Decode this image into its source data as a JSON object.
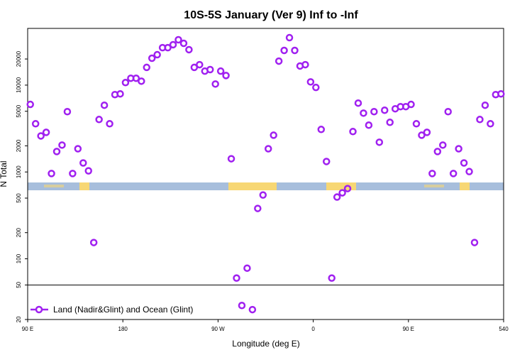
{
  "chart_data": {
    "type": "scatter",
    "title": "10S-5S January (Ver 9)   Inf to -Inf",
    "xlabel": "Longitude (deg E)",
    "ylabel": "N Total",
    "log_y": true,
    "legend": "bottom-left",
    "xlim": [
      90,
      540
    ],
    "xticks": [
      {
        "value": 90,
        "label": "90 E"
      },
      180,
      {
        "value": 270,
        "label": "90 W"
      },
      {
        "value": 360,
        "label": "0"
      },
      {
        "value": 450,
        "label": "90 E"
      },
      540
    ],
    "ylim": [
      20,
      45000
    ],
    "yticks": [
      20,
      50,
      100,
      200,
      500,
      1000,
      2000,
      5000,
      10000,
      20000
    ],
    "hlines": [
      50
    ],
    "series": [
      {
        "name": "Land (Nadir&Glint) and Ocean (Glint)",
        "color": "#a020f0",
        "x": [
          92.5,
          97.5,
          102.5,
          107.5,
          112.5,
          117.5,
          122.5,
          127.5,
          132.5,
          137.5,
          142.5,
          147.5,
          152.5,
          157.5,
          162.5,
          167.5,
          172.5,
          177.5,
          182.5,
          187.5,
          192.5,
          197.5,
          202.5,
          207.5,
          212.5,
          217.5,
          222.5,
          227.5,
          232.5,
          237.5,
          242.5,
          247.5,
          252.5,
          257.5,
          262.5,
          267.5,
          272.5,
          277.5,
          282.5,
          287.5,
          292.5,
          297.5,
          302.5,
          307.5,
          312.5,
          317.5,
          322.5,
          327.5,
          332.5,
          337.5,
          342.5,
          347.5,
          352.5,
          357.5,
          362.5,
          367.5,
          372.5,
          377.5,
          382.5,
          387.5,
          392.5,
          397.5,
          402.5,
          407.5,
          412.5,
          417.5,
          422.5,
          427.5,
          432.5,
          437.5,
          442.5,
          447.5,
          452.5,
          457.5,
          462.5,
          467.5,
          472.5,
          477.5,
          482.5,
          487.5,
          492.5,
          497.5,
          502.5,
          507.5,
          512.5,
          517.5,
          522.5,
          527.5,
          532.5,
          537.5
        ],
        "values": [
          6000,
          3590,
          2600,
          2860,
          960,
          1720,
          2040,
          4950,
          960,
          1850,
          1270,
          1030,
          154,
          4020,
          5870,
          3590,
          7780,
          7930,
          10700,
          12000,
          12000,
          11100,
          16000,
          20400,
          22400,
          27000,
          27000,
          29200,
          33300,
          30300,
          25600,
          16000,
          17200,
          14500,
          15100,
          10300,
          14500,
          12900,
          1420,
          60,
          29,
          78,
          26,
          380,
          543,
          1850,
          2650,
          18900,
          25100,
          35200,
          25100,
          16600,
          17200,
          10900,
          9400,
          3090,
          1320,
          60,
          514,
          575,
          644,
          2920,
          6210,
          4760,
          3460,
          4950,
          2200,
          5140,
          3730,
          5340,
          5650,
          5650,
          6000,
          3590,
          2650,
          2860,
          960,
          1720,
          2040,
          4950,
          960,
          1850,
          1270,
          1010,
          154,
          4020,
          5870,
          3590,
          7780,
          7930
        ]
      }
    ]
  }
}
